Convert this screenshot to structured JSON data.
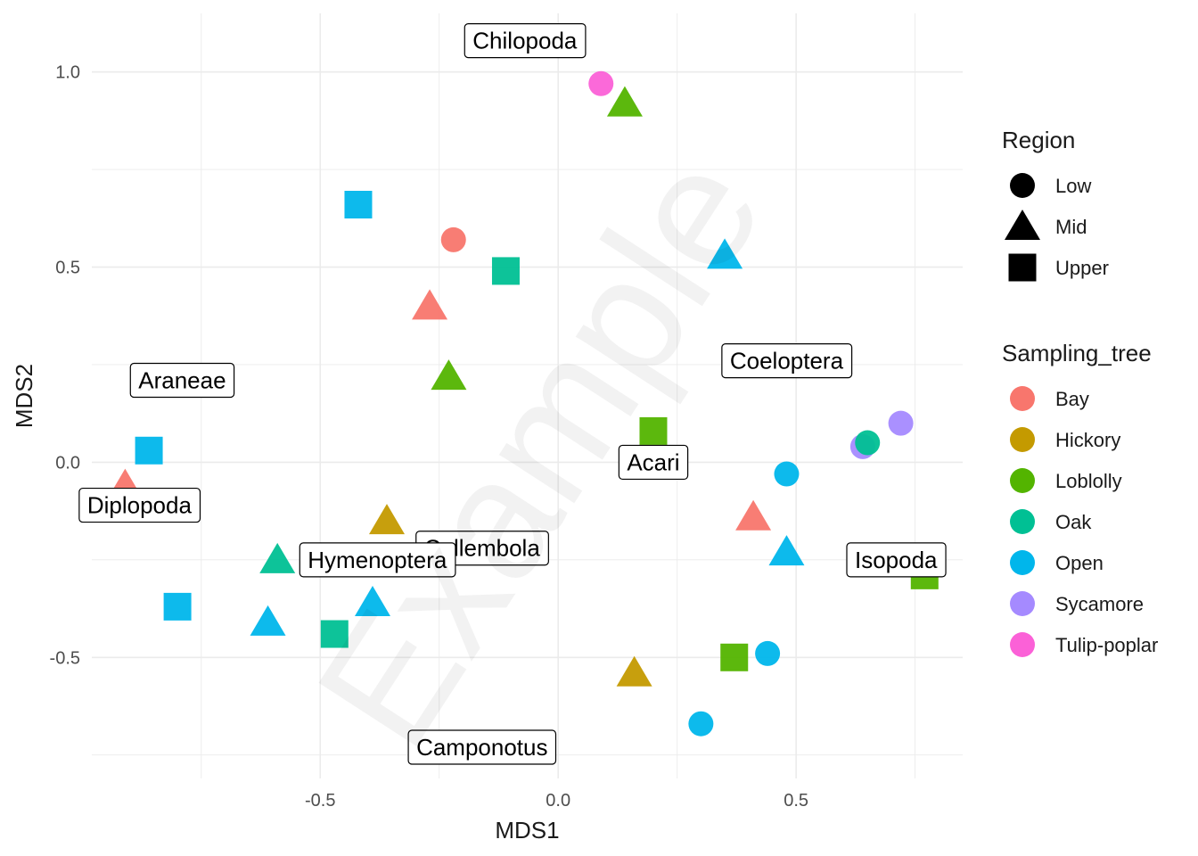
{
  "watermark": "Example",
  "chart_data": {
    "type": "scatter",
    "xlabel": "MDS1",
    "ylabel": "MDS2",
    "xlim": [
      -0.98,
      0.85
    ],
    "ylim": [
      -0.81,
      1.15
    ],
    "x_ticks": [
      -0.5,
      0.0,
      0.5
    ],
    "x_tick_labels": [
      "-0.5",
      "0.0",
      "0.5"
    ],
    "y_ticks": [
      -0.5,
      0.0,
      0.5,
      1.0
    ],
    "y_tick_labels": [
      "-0.5",
      "0.0",
      "0.5",
      "1.0"
    ],
    "grid": true,
    "legend_position": "right",
    "legends": [
      {
        "title": "Region",
        "entries": [
          {
            "label": "Low",
            "shape": "circle"
          },
          {
            "label": "Mid",
            "shape": "triangle"
          },
          {
            "label": "Upper",
            "shape": "square"
          }
        ]
      },
      {
        "title": "Sampling_tree",
        "entries": [
          {
            "label": "Bay",
            "color": "#F8766D"
          },
          {
            "label": "Hickory",
            "color": "#C49A00"
          },
          {
            "label": "Loblolly",
            "color": "#53B400"
          },
          {
            "label": "Oak",
            "color": "#00C094"
          },
          {
            "label": "Open",
            "color": "#00B6EB"
          },
          {
            "label": "Sycamore",
            "color": "#A58AFF"
          },
          {
            "label": "Tulip-poplar",
            "color": "#FB61D7"
          }
        ]
      }
    ],
    "points": [
      {
        "x": 0.09,
        "y": 0.97,
        "region": "Low",
        "tree": "Tulip-poplar"
      },
      {
        "x": 0.14,
        "y": 0.92,
        "region": "Mid",
        "tree": "Loblolly"
      },
      {
        "x": -0.42,
        "y": 0.66,
        "region": "Upper",
        "tree": "Open"
      },
      {
        "x": -0.22,
        "y": 0.57,
        "region": "Low",
        "tree": "Bay"
      },
      {
        "x": -0.11,
        "y": 0.49,
        "region": "Upper",
        "tree": "Oak"
      },
      {
        "x": 0.35,
        "y": 0.53,
        "region": "Mid",
        "tree": "Open"
      },
      {
        "x": -0.27,
        "y": 0.4,
        "region": "Mid",
        "tree": "Bay"
      },
      {
        "x": -0.23,
        "y": 0.22,
        "region": "Mid",
        "tree": "Loblolly"
      },
      {
        "x": -0.86,
        "y": 0.03,
        "region": "Upper",
        "tree": "Open"
      },
      {
        "x": 0.2,
        "y": 0.08,
        "region": "Upper",
        "tree": "Loblolly"
      },
      {
        "x": -0.91,
        "y": -0.06,
        "region": "Mid",
        "tree": "Bay"
      },
      {
        "x": 0.48,
        "y": -0.03,
        "region": "Low",
        "tree": "Open"
      },
      {
        "x": 0.64,
        "y": 0.04,
        "region": "Low",
        "tree": "Sycamore"
      },
      {
        "x": 0.65,
        "y": 0.05,
        "region": "Low",
        "tree": "Oak"
      },
      {
        "x": 0.72,
        "y": 0.1,
        "region": "Low",
        "tree": "Sycamore"
      },
      {
        "x": -0.36,
        "y": -0.15,
        "region": "Mid",
        "tree": "Hickory"
      },
      {
        "x": 0.41,
        "y": -0.14,
        "region": "Mid",
        "tree": "Bay"
      },
      {
        "x": -0.59,
        "y": -0.25,
        "region": "Mid",
        "tree": "Oak"
      },
      {
        "x": 0.48,
        "y": -0.23,
        "region": "Mid",
        "tree": "Open"
      },
      {
        "x": 0.77,
        "y": -0.29,
        "region": "Upper",
        "tree": "Loblolly"
      },
      {
        "x": -0.8,
        "y": -0.37,
        "region": "Upper",
        "tree": "Open"
      },
      {
        "x": -0.39,
        "y": -0.36,
        "region": "Mid",
        "tree": "Open"
      },
      {
        "x": -0.61,
        "y": -0.41,
        "region": "Mid",
        "tree": "Open"
      },
      {
        "x": -0.47,
        "y": -0.44,
        "region": "Upper",
        "tree": "Oak"
      },
      {
        "x": 0.37,
        "y": -0.5,
        "region": "Upper",
        "tree": "Loblolly"
      },
      {
        "x": 0.44,
        "y": -0.49,
        "region": "Low",
        "tree": "Open"
      },
      {
        "x": 0.16,
        "y": -0.54,
        "region": "Mid",
        "tree": "Hickory"
      },
      {
        "x": 0.3,
        "y": -0.67,
        "region": "Low",
        "tree": "Open"
      }
    ],
    "annotations": [
      {
        "text": "Chilopoda",
        "x": -0.07,
        "y": 1.08
      },
      {
        "text": "Araneae",
        "x": -0.79,
        "y": 0.21
      },
      {
        "text": "Coeloptera",
        "x": 0.48,
        "y": 0.26
      },
      {
        "text": "Diplopoda",
        "x": -0.88,
        "y": -0.11
      },
      {
        "text": "Acari",
        "x": 0.2,
        "y": 0.0
      },
      {
        "text": "Collembola",
        "x": -0.16,
        "y": -0.22
      },
      {
        "text": "Hymenoptera",
        "x": -0.38,
        "y": -0.25
      },
      {
        "text": "Isopoda",
        "x": 0.71,
        "y": -0.25
      },
      {
        "text": "Camponotus",
        "x": -0.16,
        "y": -0.73
      }
    ]
  }
}
